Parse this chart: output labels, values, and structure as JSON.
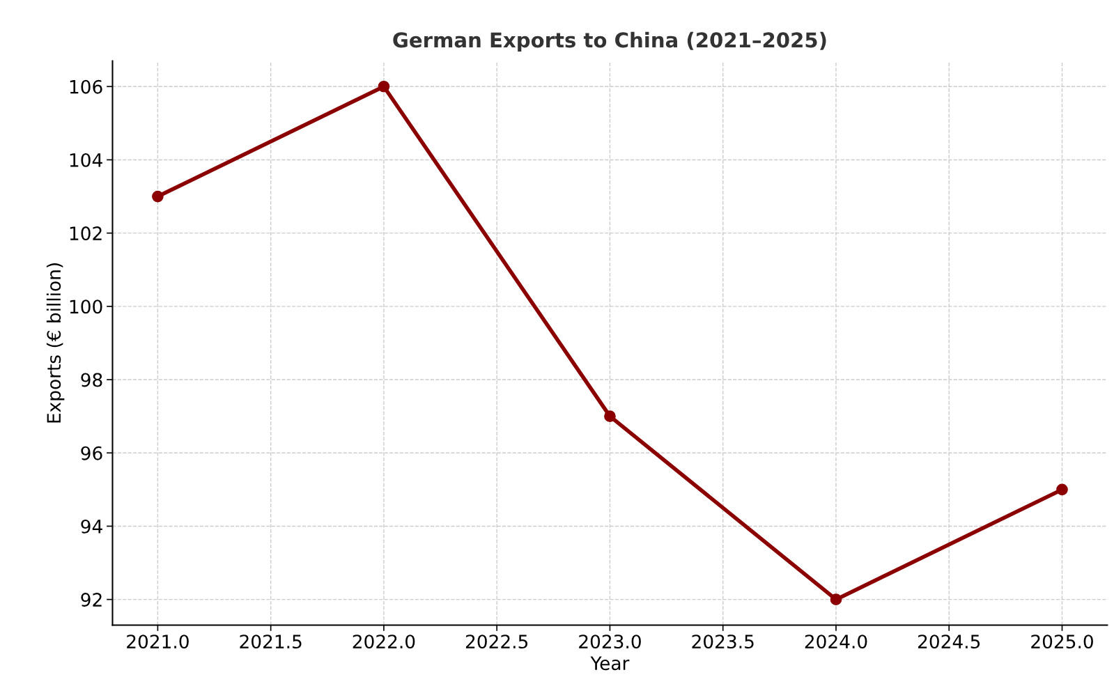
{
  "chart_data": {
    "type": "line",
    "title": "German Exports to China (2021–2025)",
    "xlabel": "Year",
    "ylabel": "Exports (€ billion)",
    "x": [
      2021,
      2022,
      2023,
      2024,
      2025
    ],
    "series": [
      {
        "color": "#8b0000",
        "values": [
          103,
          106,
          97,
          92,
          95
        ]
      }
    ],
    "xlim": [
      2020.8,
      2025.2
    ],
    "xticks": [
      {
        "value": 2021,
        "label": "2021.0"
      },
      {
        "value": 2021.5,
        "label": "2021.5"
      },
      {
        "value": 2022,
        "label": "2022.0"
      },
      {
        "value": 2022.5,
        "label": "2022.5"
      },
      {
        "value": 2023,
        "label": "2023.0"
      },
      {
        "value": 2023.5,
        "label": "2023.5"
      },
      {
        "value": 2024,
        "label": "2024.0"
      },
      {
        "value": 2024.5,
        "label": "2024.5"
      },
      {
        "value": 2025,
        "label": "2025.0"
      }
    ],
    "ylim": [
      91.3,
      106.7
    ],
    "yticks": [
      92,
      94,
      96,
      98,
      100,
      102,
      104,
      106
    ],
    "grid": true,
    "marker": "circle",
    "line_style": "solid"
  }
}
